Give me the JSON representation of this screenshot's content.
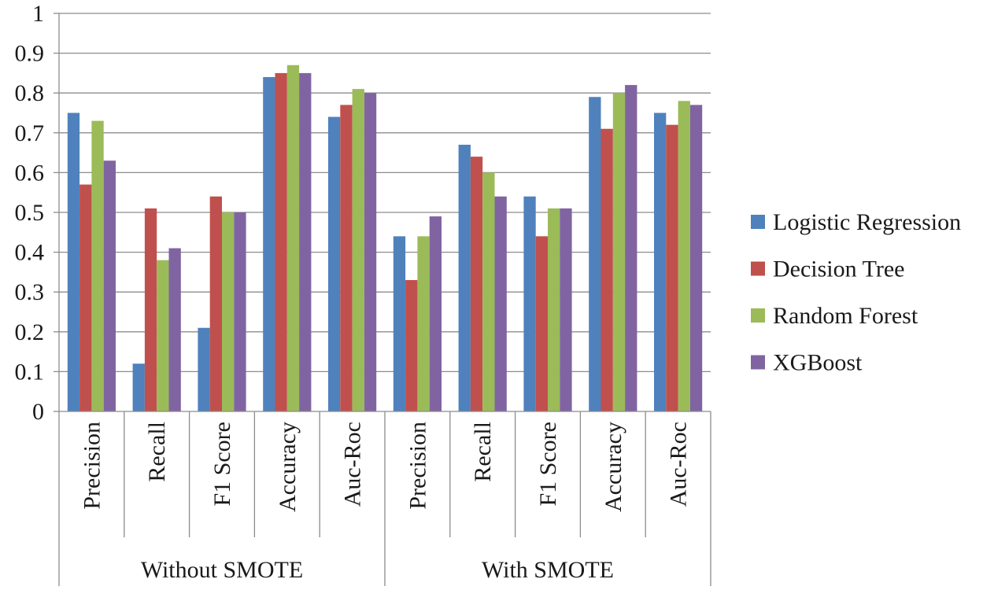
{
  "chart_data": {
    "type": "bar",
    "title": "",
    "xlabel": "",
    "ylabel": "",
    "ylim": [
      0,
      1
    ],
    "yticks": [
      0,
      0.1,
      0.2,
      0.3,
      0.4,
      0.5,
      0.6,
      0.7,
      0.8,
      0.9,
      1
    ],
    "ytick_labels": [
      "0",
      "0.1",
      "0.2",
      "0.3",
      "0.4",
      "0.5",
      "0.6",
      "0.7",
      "0.8",
      "0.9",
      "1"
    ],
    "grid": true,
    "legend_position": "right",
    "groups": [
      {
        "name": "Without SMOTE",
        "categories": [
          "Precision",
          "Recall",
          "F1 Score",
          "Accuracy",
          "Auc-Roc"
        ]
      },
      {
        "name": "With SMOTE",
        "categories": [
          "Precision",
          "Recall",
          "F1 Score",
          "Accuracy",
          "Auc-Roc"
        ]
      }
    ],
    "categories": [
      "Precision",
      "Recall",
      "F1 Score",
      "Accuracy",
      "Auc-Roc",
      "Precision",
      "Recall",
      "F1 Score",
      "Accuracy",
      "Auc-Roc"
    ],
    "series": [
      {
        "name": "Logistic Regression",
        "color": "#4f81bd",
        "values": [
          0.75,
          0.12,
          0.21,
          0.84,
          0.74,
          0.44,
          0.67,
          0.54,
          0.79,
          0.75
        ]
      },
      {
        "name": "Decision Tree",
        "color": "#c0504d",
        "values": [
          0.57,
          0.51,
          0.54,
          0.85,
          0.77,
          0.33,
          0.64,
          0.44,
          0.71,
          0.72
        ]
      },
      {
        "name": "Random Forest",
        "color": "#9bbb59",
        "values": [
          0.73,
          0.38,
          0.5,
          0.87,
          0.81,
          0.44,
          0.6,
          0.51,
          0.8,
          0.78
        ]
      },
      {
        "name": "XGBoost",
        "color": "#8064a2",
        "values": [
          0.63,
          0.41,
          0.5,
          0.85,
          0.8,
          0.49,
          0.54,
          0.51,
          0.82,
          0.77
        ]
      }
    ]
  }
}
